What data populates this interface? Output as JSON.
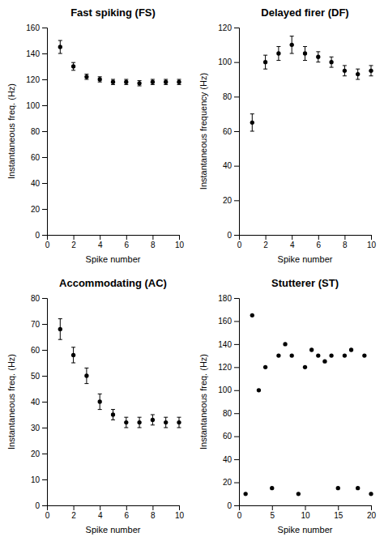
{
  "chart_data": [
    {
      "type": "scatter",
      "title": "Fast spiking (FS)",
      "xlabel": "Spike number",
      "ylabel": "Instantaneous freq. (Hz)",
      "x": [
        1,
        2,
        3,
        4,
        5,
        6,
        7,
        8,
        9,
        10
      ],
      "values": [
        145,
        130,
        122,
        120,
        118,
        118,
        117,
        118,
        118,
        118
      ],
      "yerr": [
        5,
        3,
        2,
        2,
        2,
        2,
        2,
        2,
        2,
        2
      ],
      "xlim": [
        0,
        10
      ],
      "xticks": [
        0,
        2,
        4,
        6,
        8,
        10
      ],
      "ylim": [
        0,
        160
      ],
      "yticks": [
        0,
        20,
        40,
        60,
        80,
        100,
        120,
        140,
        160
      ],
      "color": "#000000",
      "marker": "circle"
    },
    {
      "type": "scatter",
      "title": "Delayed firer (DF)",
      "xlabel": "Spike number",
      "ylabel": "Instantaneous frequency (Hz)",
      "x": [
        1,
        2,
        3,
        4,
        5,
        6,
        7,
        8,
        9,
        10
      ],
      "values": [
        65,
        100,
        105,
        110,
        105,
        103,
        100,
        95,
        93,
        95
      ],
      "yerr": [
        5,
        4,
        4,
        5,
        4,
        3,
        3,
        3,
        3,
        3
      ],
      "xlim": [
        0,
        10
      ],
      "xticks": [
        0,
        2,
        4,
        6,
        8,
        10
      ],
      "ylim": [
        0,
        120
      ],
      "yticks": [
        0,
        20,
        40,
        60,
        80,
        100,
        120
      ],
      "color": "#000000",
      "marker": "circle"
    },
    {
      "type": "scatter",
      "title": "Accommodating (AC)",
      "xlabel": "Spike number",
      "ylabel": "Instantaneous freq. (Hz)",
      "x": [
        1,
        2,
        3,
        4,
        5,
        6,
        7,
        8,
        9,
        10
      ],
      "values": [
        68,
        58,
        50,
        40,
        35,
        32,
        32,
        33,
        32,
        32
      ],
      "yerr": [
        4,
        3,
        3,
        3,
        2,
        2,
        2,
        2,
        2,
        2
      ],
      "xlim": [
        0,
        10
      ],
      "xticks": [
        0,
        2,
        4,
        6,
        8,
        10
      ],
      "ylim": [
        0,
        80
      ],
      "yticks": [
        0,
        10,
        20,
        30,
        40,
        50,
        60,
        70,
        80
      ],
      "color": "#000000",
      "marker": "circle"
    },
    {
      "type": "scatter",
      "title": "Stutterer (ST)",
      "xlabel": "Spike number",
      "ylabel": "Instantaneous freq. (Hz)",
      "x": [
        1,
        2,
        3,
        4,
        5,
        6,
        7,
        8,
        9,
        10,
        11,
        12,
        13,
        14,
        15,
        16,
        17,
        18,
        19,
        20
      ],
      "values": [
        10,
        165,
        100,
        120,
        15,
        130,
        140,
        130,
        10,
        120,
        135,
        130,
        125,
        130,
        15,
        130,
        135,
        15,
        130,
        10
      ],
      "xlim": [
        0,
        20
      ],
      "xticks": [
        0,
        5,
        10,
        15,
        20
      ],
      "ylim": [
        0,
        180
      ],
      "yticks": [
        0,
        20,
        40,
        60,
        80,
        100,
        120,
        140,
        160,
        180
      ],
      "color": "#000000",
      "marker": "circle"
    }
  ]
}
